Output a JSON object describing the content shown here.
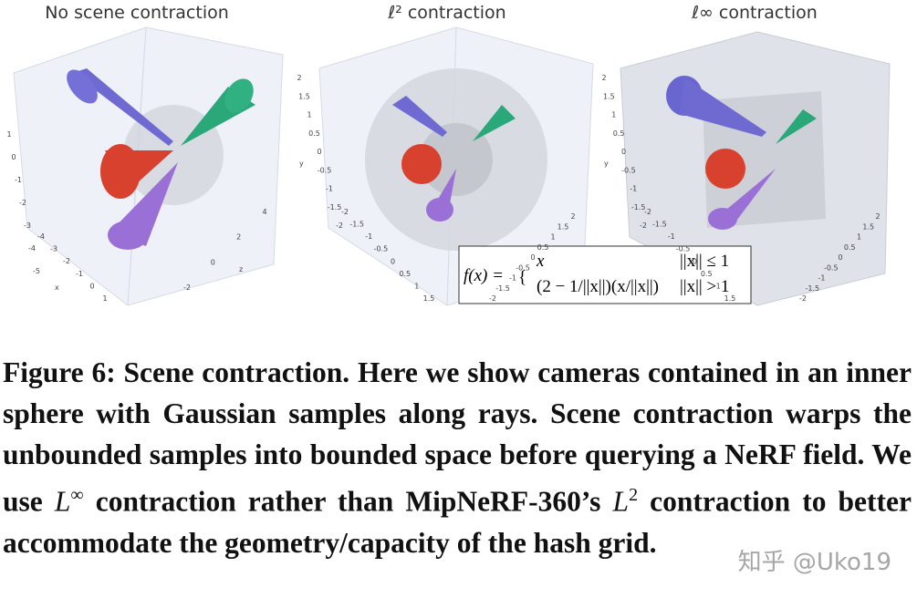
{
  "panels": [
    {
      "title": "No scene contraction",
      "left_ticks": [
        "1",
        "0",
        "-1",
        "-2",
        "-3",
        "-4",
        "-5"
      ],
      "bottom_ticks": [
        "-4",
        "-3",
        "-2",
        "-1",
        "0",
        "1"
      ],
      "right_ticks": [
        "4",
        "2",
        "0",
        "-2"
      ],
      "axis_labels": [
        "x",
        "z"
      ]
    },
    {
      "title": "ℓ² contraction",
      "left_ticks": [
        "2",
        "1.5",
        "1",
        "0.5",
        "0",
        "-0.5",
        "-1",
        "-1.5",
        "-2"
      ],
      "bottom_ticks": [
        "-2",
        "-1.5",
        "-1",
        "-0.5",
        "0",
        "0.5",
        "1",
        "1.5"
      ],
      "right_ticks": [
        "2",
        "1.5",
        "1",
        "0.5",
        "0",
        "-0.5",
        "-1",
        "-1.5",
        "-2"
      ],
      "axis_labels": [
        "y"
      ]
    },
    {
      "title": "ℓ∞ contraction",
      "left_ticks": [
        "2",
        "1.5",
        "1",
        "0.5",
        "0",
        "-0.5",
        "-1",
        "-1.5",
        "-2"
      ],
      "bottom_ticks": [
        "-2",
        "-1.5",
        "-1",
        "-0.5",
        "0",
        "0.5",
        "1",
        "1.5"
      ],
      "right_ticks": [
        "2",
        "1.5",
        "1",
        "0.5",
        "0",
        "-0.5",
        "-1",
        "-1.5",
        "-2"
      ],
      "axis_labels": [
        "y"
      ]
    }
  ],
  "formula": {
    "lhs": "f(x) =",
    "case1": "x",
    "cond1": "||x|| ≤ 1",
    "case2": "(2 − 1/||x||)(x/||x||)",
    "cond2": "||x|| > 1"
  },
  "caption": {
    "label": "Figure 6: Scene contraction.",
    "text1": " Here we show cameras contained in an inner sphere with Gaussian samples along rays. Scene contraction warps the unbounded samples into bounded space before querying a NeRF field. We use ",
    "sym1": "L",
    "sup1": "∞",
    "text2": " contraction rather than MipNeRF-360’s ",
    "sym2": "L",
    "sup2": "2",
    "text3": " contraction to better accommodate the geometry/capacity of the hash grid."
  },
  "watermark": "知乎 @Uko19"
}
